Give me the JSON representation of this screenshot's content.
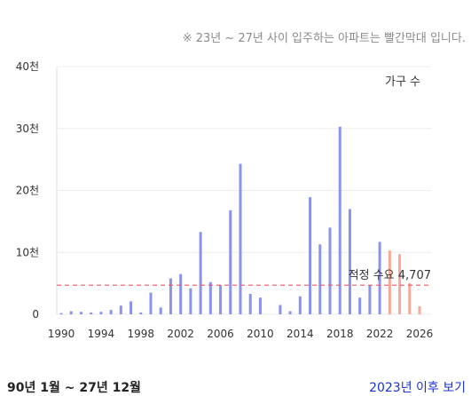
{
  "note": "※ 23년 ~ 27년 사이 입주하는 아파트는 빨간막대 입니다.",
  "footer": {
    "range_label": "90년 1월 ~ 27년 12월",
    "link_label": "2023년 이후 보기"
  },
  "chart_data": {
    "type": "bar",
    "legend": "가구 수",
    "y_tick_labels": [
      "0",
      "10천",
      "20천",
      "30천",
      "40천"
    ],
    "y_ticks": [
      0,
      10000,
      20000,
      30000,
      40000
    ],
    "x_tick_labels": [
      "1990",
      "1994",
      "1998",
      "2002",
      "2006",
      "2010",
      "2014",
      "2018",
      "2022",
      "2026"
    ],
    "ylim": [
      0,
      40000
    ],
    "xlim": [
      1989,
      2027
    ],
    "threshold": {
      "label": "적정 수요 4,707",
      "value": 4707,
      "color": "#ee5566"
    },
    "colors": {
      "past": "#8a93ee",
      "future": "#f7a898",
      "grid": "#eeeeee"
    },
    "future_from": 2023,
    "years": [
      1990,
      1991,
      1992,
      1993,
      1994,
      1995,
      1996,
      1997,
      1998,
      1999,
      2000,
      2001,
      2002,
      2003,
      2004,
      2005,
      2006,
      2007,
      2008,
      2009,
      2010,
      2011,
      2012,
      2013,
      2014,
      2015,
      2016,
      2017,
      2018,
      2019,
      2020,
      2021,
      2022,
      2023,
      2024,
      2025,
      2026,
      2027
    ],
    "values": [
      200,
      500,
      400,
      300,
      400,
      700,
      1400,
      2100,
      300,
      3500,
      1100,
      5800,
      6500,
      4200,
      13300,
      5200,
      4700,
      16800,
      24300,
      3300,
      2700,
      0,
      1500,
      500,
      2900,
      18900,
      11300,
      14000,
      30300,
      17000,
      2700,
      4700,
      11700,
      10300,
      9700,
      5000,
      1300,
      0
    ]
  }
}
